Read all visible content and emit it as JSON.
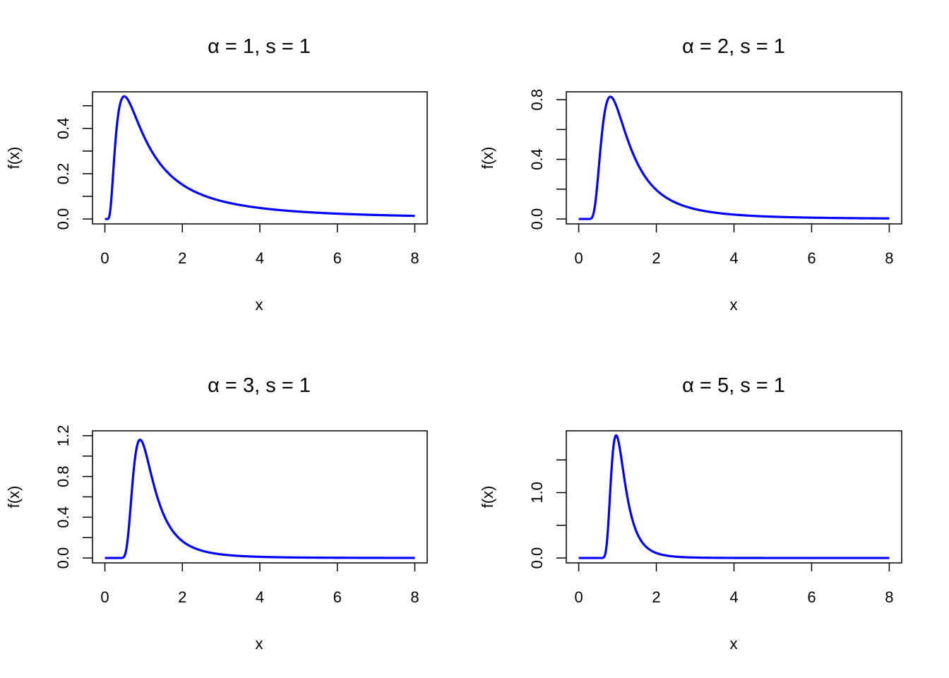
{
  "chart_data": [
    {
      "type": "line",
      "title": {
        "greek": "α",
        "alpha": "1",
        "s": "1"
      },
      "xlabel": "x",
      "ylabel": "f(x)",
      "xlim": [
        0,
        8
      ],
      "ylim": [
        0,
        0.54
      ],
      "xticks": [
        "0",
        "2",
        "4",
        "6",
        "8"
      ],
      "yticks": [
        "0.0",
        "0.2",
        "0.4"
      ],
      "yminor": [
        0.1,
        0.3,
        0.5
      ],
      "color": "#0000ff",
      "series": [
        {
          "alpha": 1,
          "s": 1,
          "x": [
            0,
            8
          ]
        }
      ]
    },
    {
      "type": "line",
      "title": {
        "greek": "α",
        "alpha": "2",
        "s": "1"
      },
      "xlabel": "x",
      "ylabel": "f(x)",
      "xlim": [
        0,
        8
      ],
      "ylim": [
        0,
        0.82
      ],
      "xticks": [
        "0",
        "2",
        "4",
        "6",
        "8"
      ],
      "yticks": [
        "0.0",
        "0.4",
        "0.8"
      ],
      "yminor": [
        0.2,
        0.6
      ],
      "color": "#0000ff",
      "series": [
        {
          "alpha": 2,
          "s": 1,
          "x": [
            0,
            8
          ]
        }
      ]
    },
    {
      "type": "line",
      "title": {
        "greek": "α",
        "alpha": "3",
        "s": "1"
      },
      "xlabel": "x",
      "ylabel": "f(x)",
      "xlim": [
        0,
        8
      ],
      "ylim": [
        0,
        1.2
      ],
      "xticks": [
        "0",
        "2",
        "4",
        "6",
        "8"
      ],
      "yticks": [
        "0.0",
        "0.4",
        "0.8",
        "1.2"
      ],
      "yminor": [
        0.2,
        0.6,
        1.0
      ],
      "color": "#0000ff",
      "series": [
        {
          "alpha": 3,
          "s": 1,
          "x": [
            0,
            8
          ]
        }
      ]
    },
    {
      "type": "line",
      "title": {
        "greek": "α",
        "alpha": "5",
        "s": "1"
      },
      "xlabel": "x",
      "ylabel": "f(x)",
      "xlim": [
        0,
        8
      ],
      "ylim": [
        0,
        1.87
      ],
      "xticks": [
        "0",
        "2",
        "4",
        "6",
        "8"
      ],
      "yticks": [
        "0.0",
        "1.0"
      ],
      "yminor": [
        0.5,
        1.5
      ],
      "color": "#0000ff",
      "series": [
        {
          "alpha": 5,
          "s": 1,
          "x": [
            0,
            8
          ]
        }
      ]
    }
  ]
}
